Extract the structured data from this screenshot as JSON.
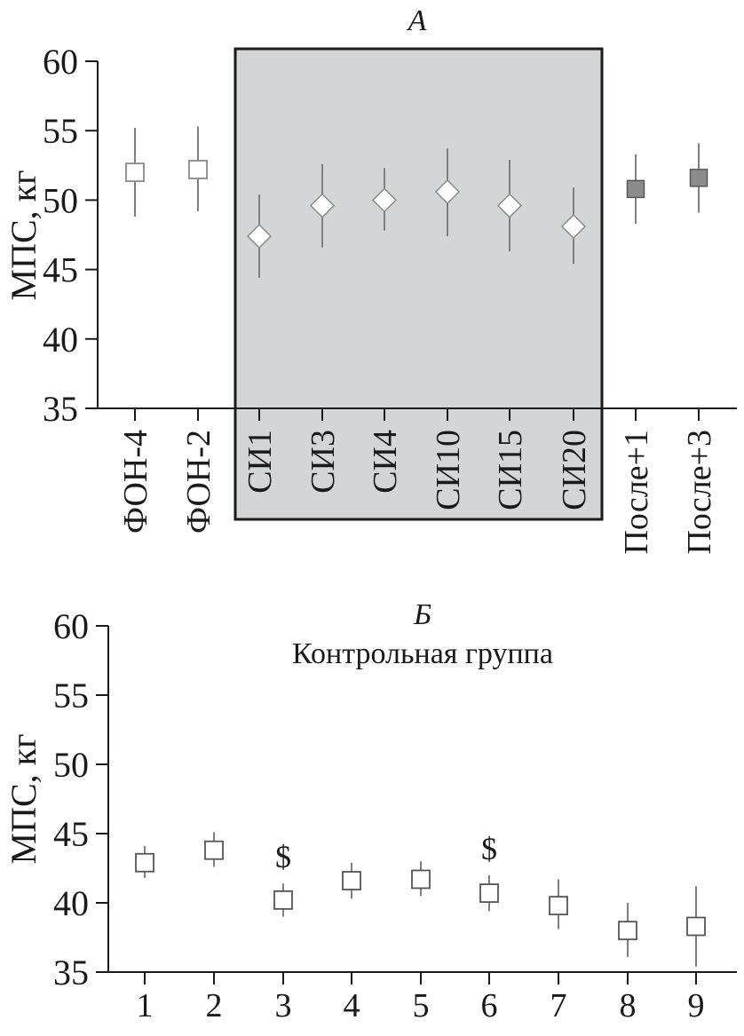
{
  "chart_data": [
    {
      "type": "scatter",
      "title": "А",
      "ylabel": "МПС, кг",
      "ylim": [
        35,
        60
      ],
      "yticks": [
        35,
        40,
        45,
        50,
        55,
        60
      ],
      "grid": false,
      "categories": [
        "ФОН-4",
        "ФОН-2",
        "СИ1",
        "СИ3",
        "СИ4",
        "СИ10",
        "СИ15",
        "СИ20",
        "После+1",
        "После+3"
      ],
      "means": [
        52.0,
        52.2,
        47.4,
        49.6,
        50.0,
        50.6,
        49.6,
        48.1,
        50.8,
        51.6
      ],
      "lower": [
        48.8,
        49.2,
        44.4,
        46.6,
        47.8,
        47.4,
        46.3,
        45.4,
        48.3,
        49.1
      ],
      "upper": [
        55.2,
        55.3,
        50.4,
        52.6,
        52.3,
        53.7,
        52.9,
        50.9,
        53.3,
        54.1
      ],
      "markers": [
        "open-square",
        "open-square",
        "diamond",
        "diamond",
        "diamond",
        "diamond",
        "diamond",
        "diamond",
        "filled-square",
        "filled-square"
      ],
      "highlight_range": [
        "СИ1",
        "СИ20"
      ],
      "colors": {
        "highlight_fill": "#d4d5d7",
        "filled_marker": "#8c8c8c",
        "errorbar": "#808080",
        "axis": "#1a1a1a"
      }
    },
    {
      "type": "scatter",
      "title": "Б",
      "subtitle": "Контрольная группа",
      "ylabel": "МПС, кг",
      "ylim": [
        35,
        60
      ],
      "yticks": [
        35,
        40,
        45,
        50,
        55,
        60
      ],
      "grid": false,
      "categories": [
        "1",
        "2",
        "3",
        "4",
        "5",
        "6",
        "7",
        "8",
        "9"
      ],
      "means": [
        42.9,
        43.8,
        40.2,
        41.6,
        41.7,
        40.7,
        39.8,
        38.0,
        38.3
      ],
      "lower": [
        41.8,
        42.6,
        39.0,
        40.3,
        40.5,
        39.4,
        38.1,
        36.1,
        35.4
      ],
      "upper": [
        44.1,
        45.1,
        41.4,
        42.9,
        43.0,
        42.0,
        41.7,
        40.0,
        41.2
      ],
      "annotations": [
        {
          "category": "3",
          "text": "$"
        },
        {
          "category": "6",
          "text": "$"
        }
      ],
      "colors": {
        "errorbar": "#808080",
        "marker_stroke": "#555555",
        "axis": "#1a1a1a"
      }
    }
  ]
}
